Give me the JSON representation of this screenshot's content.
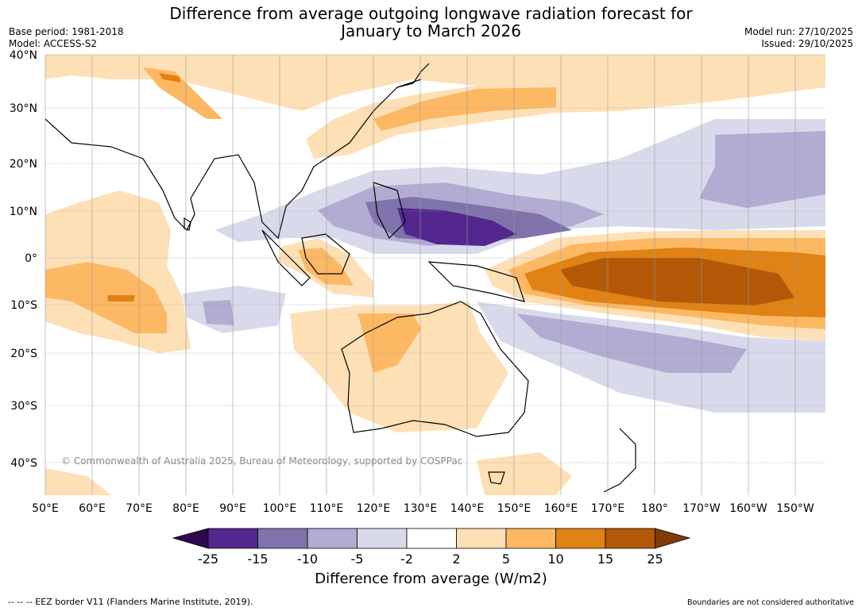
{
  "title": {
    "line1": "Difference from average outgoing longwave radiation forecast for",
    "line2": "January to March 2026"
  },
  "meta": {
    "base_period": "Base period: 1981-2018",
    "model": "Model: ACCESS-S2",
    "model_run": "Model run: 27/10/2025",
    "issued": "Issued: 29/10/2025"
  },
  "map": {
    "lat_labels": [
      "40°N",
      "30°N",
      "20°N",
      "10°N",
      "0°",
      "10°S",
      "20°S",
      "30°S",
      "40°S"
    ],
    "lon_labels": [
      "50°E",
      "60°E",
      "70°E",
      "80°E",
      "90°E",
      "100°E",
      "110°E",
      "120°E",
      "130°E",
      "140°E",
      "150°E",
      "160°E",
      "170°E",
      "180°",
      "170°W",
      "160°W",
      "150°W"
    ],
    "copyright": "© Commonwealth of Australia 2025, Bureau of Meteorology, supported by COSPPac",
    "colors": {
      "p25": "#2d0a4e",
      "p15": "#54278f",
      "p10": "#8073ac",
      "p5": "#b2abd2",
      "p2": "#d8daeb",
      "zero": "#ffffff",
      "o2": "#fee0b6",
      "o5": "#fdb863",
      "o10": "#e08214",
      "o15": "#b35806",
      "o25": "#7f3b08"
    }
  },
  "colorbar": {
    "ticks": [
      "-25",
      "-15",
      "-10",
      "-5",
      "-2",
      "2",
      "5",
      "10",
      "15",
      "25"
    ],
    "title": "Difference from average (W/m2)"
  },
  "footer": {
    "eez": "--  --  -- EEZ border V11 (Flanders Marine Institute, 2019).",
    "disclaimer": "Boundaries are not considered authoritative"
  }
}
